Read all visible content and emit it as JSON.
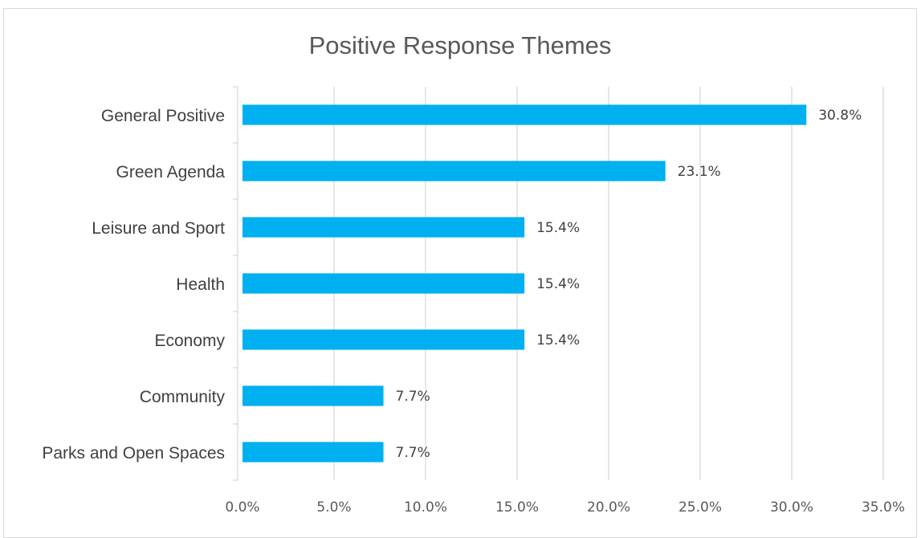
{
  "chart_data": {
    "type": "bar",
    "orientation": "horizontal",
    "title": "Positive Response Themes",
    "xlabel": "",
    "ylabel": "",
    "categories": [
      "General Positive",
      "Green Agenda",
      "Leisure and Sport",
      "Health",
      "Economy",
      "Community",
      "Parks and Open Spaces"
    ],
    "values": [
      30.8,
      23.1,
      15.4,
      15.4,
      15.4,
      7.7,
      7.7
    ],
    "data_labels": [
      "30.8%",
      "23.1%",
      "15.4%",
      "15.4%",
      "15.4%",
      "7.7%",
      "7.7%"
    ],
    "xlim": [
      0,
      35
    ],
    "xticks": [
      0,
      5,
      10,
      15,
      20,
      25,
      30,
      35
    ],
    "xtick_labels": [
      "0.0%",
      "5.0%",
      "10.0%",
      "15.0%",
      "20.0%",
      "25.0%",
      "30.0%",
      "35.0%"
    ],
    "grid": true,
    "legend": "none",
    "colors": {
      "bar": "#00B0F0",
      "gridline": "#d9d9d9",
      "axis": "#d9d9d9"
    }
  }
}
